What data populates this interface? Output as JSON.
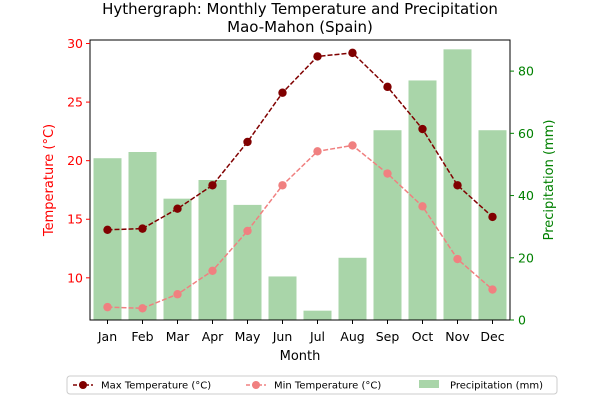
{
  "chart_data": {
    "type": "bar+line",
    "title": "Hythergraph: Monthly Temperature and Precipitation",
    "subtitle": "Mao-Mahon (Spain)",
    "xlabel": "Month",
    "ylabel_left": "Temperature (°C)",
    "ylabel_right": "Precipitation (mm)",
    "categories": [
      "Jan",
      "Feb",
      "Mar",
      "Apr",
      "May",
      "Jun",
      "Jul",
      "Aug",
      "Sep",
      "Oct",
      "Nov",
      "Dec"
    ],
    "ylim_left": [
      6.4,
      30.3
    ],
    "ylim_right": [
      0,
      90
    ],
    "yticks_left": [
      10,
      15,
      20,
      25,
      30
    ],
    "yticks_right": [
      0,
      20,
      40,
      60,
      80
    ],
    "series": [
      {
        "name": "Max Temperature (°C)",
        "axis": "left",
        "kind": "line",
        "color": "#800000",
        "values": [
          14.1,
          14.2,
          15.9,
          17.9,
          21.6,
          25.8,
          28.9,
          29.2,
          26.3,
          22.7,
          17.9,
          15.2
        ]
      },
      {
        "name": "Min Temperature (°C)",
        "axis": "left",
        "kind": "line",
        "color": "#f08080",
        "values": [
          7.5,
          7.4,
          8.6,
          10.6,
          14.0,
          17.9,
          20.8,
          21.3,
          18.9,
          16.1,
          11.6,
          9.0
        ]
      },
      {
        "name": "Precipitation (mm)",
        "axis": "right",
        "kind": "bar",
        "color": "#a9d5a9",
        "values": [
          52,
          54,
          39,
          45,
          37,
          14,
          3,
          20,
          61,
          77,
          87,
          61
        ]
      }
    ],
    "legend_position": "bottom-center",
    "grid": false,
    "colors": {
      "left_axis": "#ff0000",
      "right_axis": "#008000"
    }
  }
}
